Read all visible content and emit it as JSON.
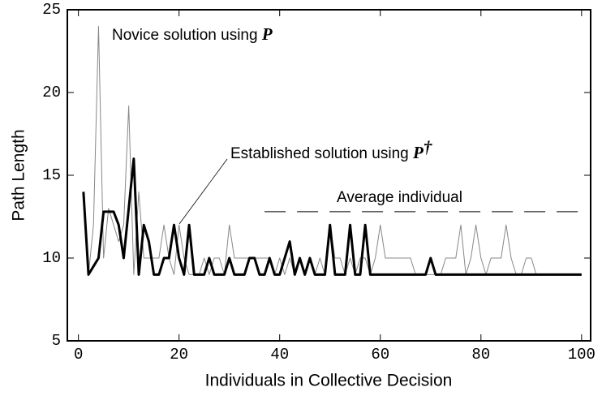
{
  "chart_data": {
    "type": "line",
    "xlabel": "Individuals in Collective Decision",
    "ylabel": "Path Length",
    "xlim": [
      -2.2,
      101.8
    ],
    "ylim": [
      5,
      25
    ],
    "xticks": [
      0,
      20,
      40,
      60,
      80,
      100
    ],
    "yticks": [
      5,
      10,
      15,
      20,
      25
    ],
    "x": [
      1,
      2,
      3,
      4,
      5,
      6,
      7,
      8,
      9,
      10,
      11,
      12,
      13,
      14,
      15,
      16,
      17,
      18,
      19,
      20,
      21,
      22,
      23,
      24,
      25,
      26,
      27,
      28,
      29,
      30,
      31,
      32,
      33,
      34,
      35,
      36,
      37,
      38,
      39,
      40,
      41,
      42,
      43,
      44,
      45,
      46,
      47,
      48,
      49,
      50,
      51,
      52,
      53,
      54,
      55,
      56,
      57,
      58,
      59,
      60,
      61,
      62,
      63,
      64,
      65,
      66,
      67,
      68,
      69,
      70,
      71,
      72,
      73,
      74,
      75,
      76,
      77,
      78,
      79,
      80,
      81,
      82,
      83,
      84,
      85,
      86,
      87,
      88,
      89,
      90,
      91,
      92,
      93,
      94,
      95,
      96,
      97,
      98,
      99,
      100
    ],
    "series": [
      {
        "color": "#888888",
        "width": 1,
        "values": [
          14,
          9,
          12,
          24,
          10,
          13,
          12,
          11,
          12,
          19.2,
          9,
          14,
          10,
          10,
          10,
          10,
          12,
          10,
          9,
          12,
          10,
          9,
          9,
          9,
          10,
          9,
          10,
          10,
          9,
          12,
          10,
          10,
          10,
          10,
          10,
          10,
          10,
          10,
          9,
          10,
          9,
          10,
          9,
          10,
          9,
          10,
          9,
          10,
          9,
          12,
          10,
          10,
          9,
          10,
          9,
          10,
          10,
          9,
          10,
          12,
          10,
          10,
          10,
          10,
          10,
          10,
          9,
          9,
          9,
          9,
          9,
          9,
          10,
          10,
          10,
          12,
          9,
          10,
          12,
          10,
          9,
          10,
          10,
          10,
          12,
          10,
          9,
          9,
          10,
          10,
          9,
          9,
          9,
          9,
          9,
          9,
          9,
          9,
          9,
          9
        ]
      },
      {
        "color": "#000000",
        "width": 3,
        "values": [
          14,
          9,
          9.5,
          10,
          12.8,
          12.8,
          12.8,
          12,
          10,
          13,
          16,
          9,
          12,
          11,
          9,
          9,
          10,
          10,
          12,
          10,
          9,
          12,
          9,
          9,
          9,
          10,
          9,
          9,
          9,
          10,
          9,
          9,
          9,
          10,
          10,
          9,
          9,
          10,
          9,
          9,
          10,
          11,
          9,
          10,
          9,
          10,
          9,
          9,
          9,
          12,
          9,
          9,
          9,
          12,
          9,
          9,
          12,
          9,
          9,
          9,
          9,
          9,
          9,
          9,
          9,
          9,
          9,
          9,
          9,
          10,
          9,
          9,
          9,
          9,
          9,
          9,
          9,
          9,
          9,
          9,
          9,
          9,
          9,
          9,
          9,
          9,
          9,
          9,
          9,
          9,
          9,
          9,
          9,
          9,
          9,
          9,
          9,
          9,
          9,
          9
        ]
      },
      {
        "color": "#000000",
        "width": 1,
        "dash": "26 14",
        "x": [
          37,
          100
        ],
        "values": [
          12.8,
          12.8
        ]
      }
    ],
    "annotations": [
      {
        "text": "Novice solution using",
        "symbol": "P"
      },
      {
        "text": "Established solution using",
        "symbol": "P",
        "sup": "†"
      },
      {
        "text": "Average individual"
      }
    ]
  }
}
